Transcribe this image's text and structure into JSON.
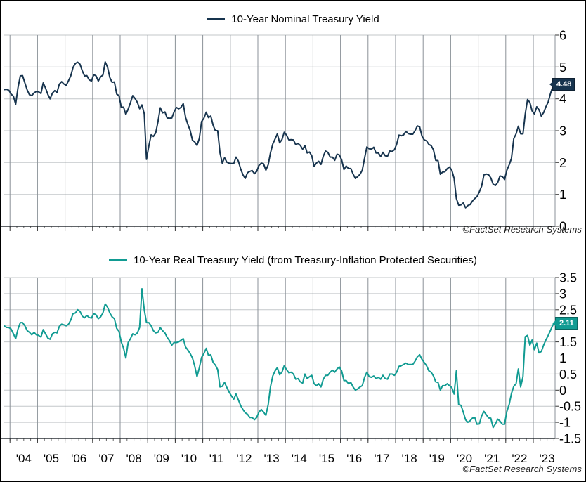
{
  "figure": {
    "attribution": "©FactSet Research Systems",
    "background": "#ffffff",
    "border_color": "#000000",
    "grid_horizontal_color": "#c3c7ca",
    "grid_vertical_color": "#8b9298",
    "axis_color": "#333333"
  },
  "x_axis": {
    "labels": [
      "'04",
      "'05",
      "'06",
      "'07",
      "'08",
      "'09",
      "'10",
      "'11",
      "'12",
      "'13",
      "'14",
      "'15",
      "'16",
      "'17",
      "'18",
      "'19",
      "'20",
      "'21",
      "'22",
      "'23"
    ]
  },
  "chart_data": [
    {
      "type": "line",
      "title": "10-Year Nominal Treasury Yield",
      "xlabel": "",
      "ylabel": "",
      "legend_position": "top-center",
      "grid": true,
      "y_axis_side": "right",
      "xlim": [
        2003.79,
        2023.79
      ],
      "ylim": [
        0,
        6
      ],
      "yticks": [
        6,
        5,
        4,
        3,
        2,
        1,
        0
      ],
      "ytick_labels": [
        "6",
        "5",
        "4",
        "3",
        "2",
        "1",
        "0"
      ],
      "last_value_label": "4.48",
      "series": [
        {
          "name": "10-Year Nominal Treasury Yield",
          "color": "#17344e",
          "x_start": 2003.79,
          "x_step": 0.083333,
          "values": [
            4.29,
            4.3,
            4.27,
            4.15,
            4.08,
            3.83,
            4.35,
            4.72,
            4.73,
            4.5,
            4.28,
            4.13,
            4.1,
            4.19,
            4.23,
            4.22,
            4.17,
            4.5,
            4.34,
            4.14,
            4.0,
            4.18,
            4.26,
            4.2,
            4.46,
            4.54,
            4.47,
            4.42,
            4.57,
            4.72,
            4.99,
            5.11,
            5.15,
            5.09,
            4.88,
            4.72,
            4.73,
            4.6,
            4.56,
            4.76,
            4.72,
            4.56,
            4.69,
            4.75,
            5.16,
            5.0,
            4.67,
            4.52,
            4.53,
            4.15,
            4.1,
            3.74,
            3.74,
            3.51,
            3.68,
            3.88,
            4.1,
            4.01,
            3.89,
            3.69,
            3.81,
            3.53,
            2.1,
            2.52,
            2.87,
            2.82,
            2.93,
            3.29,
            3.72,
            3.56,
            3.59,
            3.4,
            3.39,
            3.4,
            3.59,
            3.73,
            3.69,
            3.73,
            3.85,
            3.42,
            3.2,
            3.01,
            2.7,
            2.65,
            2.54,
            2.76,
            3.29,
            3.39,
            3.58,
            3.41,
            3.46,
            3.17,
            3.0,
            3.0,
            2.3,
            1.98,
            2.15,
            2.01,
            1.98,
            1.97,
            1.97,
            2.17,
            2.05,
            1.8,
            1.62,
            1.5,
            1.68,
            1.72,
            1.75,
            1.65,
            1.72,
            1.91,
            1.98,
            1.96,
            1.76,
            1.93,
            2.3,
            2.58,
            2.74,
            2.9,
            2.62,
            2.72,
            2.95,
            2.86,
            2.71,
            2.72,
            2.71,
            2.56,
            2.6,
            2.54,
            2.42,
            2.53,
            2.3,
            2.33,
            2.21,
            1.88,
            1.98,
            2.04,
            1.94,
            2.2,
            2.36,
            2.32,
            2.17,
            2.17,
            2.07,
            2.26,
            2.24,
            2.09,
            1.78,
            1.89,
            1.81,
            1.81,
            1.64,
            1.5,
            1.56,
            1.63,
            1.76,
            2.14,
            2.49,
            2.43,
            2.42,
            2.48,
            2.3,
            2.3,
            2.19,
            2.32,
            2.21,
            2.2,
            2.36,
            2.35,
            2.4,
            2.58,
            2.86,
            2.84,
            2.87,
            2.98,
            2.91,
            2.89,
            2.89,
            3.0,
            3.15,
            3.12,
            2.83,
            2.71,
            2.68,
            2.57,
            2.53,
            2.4,
            2.07,
            2.06,
            1.63,
            1.7,
            1.71,
            1.81,
            1.86,
            1.76,
            1.5,
            0.87,
            0.66,
            0.67,
            0.73,
            0.58,
            0.65,
            0.68,
            0.79,
            0.87,
            0.93,
            1.08,
            1.26,
            1.61,
            1.64,
            1.62,
            1.52,
            1.32,
            1.28,
            1.37,
            1.58,
            1.56,
            1.47,
            1.76,
            1.93,
            2.13,
            2.75,
            2.9,
            3.14,
            2.9,
            2.9,
            3.52,
            3.98,
            3.89,
            3.62,
            3.53,
            3.75,
            3.66,
            3.46,
            3.57,
            3.75,
            3.9,
            4.17,
            4.38,
            4.48
          ]
        }
      ]
    },
    {
      "type": "line",
      "title": "10-Year Real Treasury Yield (from Treasury-Inflation Protected Securities)",
      "xlabel": "",
      "ylabel": "",
      "legend_position": "top-center",
      "grid": true,
      "y_axis_side": "right",
      "xlim": [
        2003.79,
        2023.79
      ],
      "ylim": [
        -1.5,
        3.5
      ],
      "yticks": [
        3.5,
        3,
        2.5,
        2,
        1.5,
        1,
        0.5,
        0,
        -0.5,
        -1,
        -1.5
      ],
      "ytick_labels": [
        "3.5",
        "3",
        "2.5",
        "2",
        "1.5",
        "1",
        "0.5",
        "0",
        "-0.5",
        "-1",
        "-1.5"
      ],
      "last_value_label": "2.11",
      "series": [
        {
          "name": "10-Year Real Treasury Yield (from Treasury-Inflation Protected Securities)",
          "color": "#119b92",
          "x_start": 2003.79,
          "x_step": 0.083333,
          "values": [
            2.0,
            1.95,
            1.95,
            1.9,
            1.75,
            1.6,
            1.9,
            2.1,
            2.1,
            2.0,
            1.85,
            1.8,
            1.72,
            1.8,
            1.72,
            1.7,
            1.65,
            1.88,
            1.75,
            1.62,
            1.58,
            1.75,
            1.8,
            1.78,
            1.98,
            2.05,
            2.03,
            2.0,
            2.05,
            2.18,
            2.38,
            2.4,
            2.5,
            2.45,
            2.3,
            2.25,
            2.32,
            2.26,
            2.24,
            2.38,
            2.34,
            2.22,
            2.28,
            2.4,
            2.68,
            2.58,
            2.4,
            2.28,
            2.22,
            1.92,
            1.83,
            1.5,
            1.3,
            1.0,
            1.48,
            1.6,
            1.75,
            1.72,
            1.78,
            1.95,
            3.15,
            2.5,
            2.1,
            2.1,
            2.0,
            1.85,
            1.78,
            1.8,
            1.94,
            1.85,
            1.78,
            1.64,
            1.54,
            1.4,
            1.48,
            1.48,
            1.5,
            1.55,
            1.6,
            1.34,
            1.25,
            1.14,
            1.0,
            0.75,
            0.42,
            0.7,
            1.02,
            1.14,
            1.3,
            1.08,
            1.1,
            0.86,
            0.78,
            0.64,
            0.1,
            0.12,
            0.24,
            0.08,
            -0.06,
            -0.18,
            -0.28,
            -0.12,
            -0.3,
            -0.48,
            -0.6,
            -0.7,
            -0.75,
            -0.85,
            -0.85,
            -0.92,
            -0.85,
            -0.68,
            -0.6,
            -0.68,
            -0.78,
            -0.45,
            0.1,
            0.44,
            0.6,
            0.7,
            0.48,
            0.56,
            0.76,
            0.64,
            0.54,
            0.56,
            0.5,
            0.34,
            0.36,
            0.26,
            0.22,
            0.5,
            0.36,
            0.42,
            0.46,
            0.2,
            0.14,
            0.2,
            0.1,
            0.34,
            0.46,
            0.46,
            0.56,
            0.62,
            0.56,
            0.66,
            0.72,
            0.6,
            0.3,
            0.3,
            0.2,
            0.24,
            0.1,
            0.0,
            0.04,
            0.1,
            0.14,
            0.4,
            0.56,
            0.42,
            0.4,
            0.44,
            0.36,
            0.4,
            0.34,
            0.46,
            0.36,
            0.34,
            0.5,
            0.5,
            0.46,
            0.56,
            0.74,
            0.76,
            0.8,
            0.84,
            0.8,
            0.8,
            0.8,
            0.9,
            1.04,
            1.1,
            0.96,
            0.86,
            0.76,
            0.6,
            0.56,
            0.44,
            0.26,
            0.24,
            0.0,
            0.14,
            0.14,
            0.2,
            0.14,
            0.08,
            -0.12,
            0.6,
            -0.45,
            -0.47,
            -0.68,
            -0.92,
            -1.0,
            -0.95,
            -0.87,
            -0.85,
            -1.06,
            -1.05,
            -0.8,
            -0.66,
            -0.76,
            -0.86,
            -0.87,
            -1.16,
            -1.05,
            -0.9,
            -0.96,
            -1.06,
            -1.06,
            -0.66,
            -0.44,
            -0.1,
            0.12,
            0.2,
            0.66,
            0.1,
            0.42,
            1.66,
            1.7,
            1.4,
            1.56,
            1.26,
            1.46,
            1.16,
            1.2,
            1.4,
            1.56,
            1.7,
            1.86,
            2.02,
            2.11
          ]
        }
      ]
    }
  ]
}
